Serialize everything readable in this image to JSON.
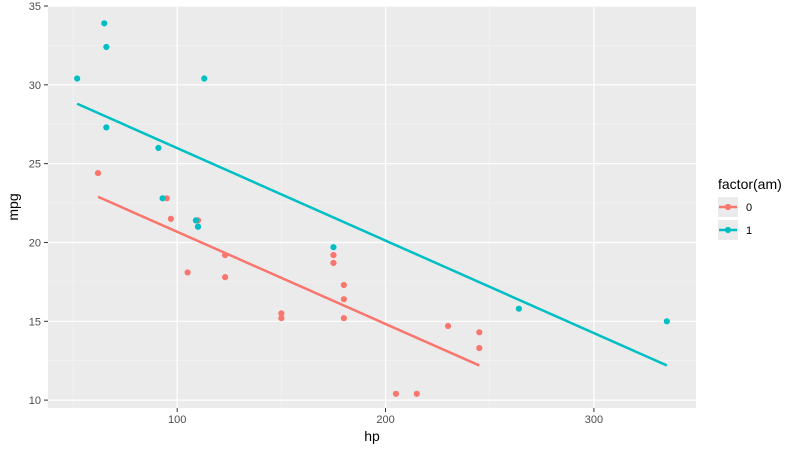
{
  "chart_data": {
    "type": "scatter",
    "xlabel": "hp",
    "ylabel": "mpg",
    "xlim": [
      38,
      349
    ],
    "ylim": [
      9.5,
      35
    ],
    "x_ticks": [
      100,
      200,
      300
    ],
    "y_ticks": [
      10,
      15,
      20,
      25,
      30,
      35
    ],
    "x_tick_labels": [
      "100",
      "200",
      "300"
    ],
    "y_tick_labels": [
      "10",
      "15",
      "20",
      "25",
      "30",
      "35"
    ],
    "grid": true,
    "legend": {
      "title": "factor(am)",
      "placement": "right"
    },
    "series": [
      {
        "name": "0",
        "color": "#F8766D",
        "points": [
          [
            110,
            21.4
          ],
          [
            175,
            18.7
          ],
          [
            105,
            18.1
          ],
          [
            245,
            14.3
          ],
          [
            62,
            24.4
          ],
          [
            95,
            22.8
          ],
          [
            123,
            19.2
          ],
          [
            123,
            17.8
          ],
          [
            180,
            16.4
          ],
          [
            180,
            17.3
          ],
          [
            180,
            15.2
          ],
          [
            205,
            10.4
          ],
          [
            215,
            10.4
          ],
          [
            230,
            14.7
          ],
          [
            97,
            21.5
          ],
          [
            150,
            15.5
          ],
          [
            150,
            15.2
          ],
          [
            245,
            13.3
          ],
          [
            175,
            19.2
          ]
        ],
        "fit_line": [
          [
            62,
            22.9
          ],
          [
            245,
            12.2
          ]
        ]
      },
      {
        "name": "1",
        "color": "#00BFC4",
        "points": [
          [
            110,
            21.0
          ],
          [
            110,
            21.0
          ],
          [
            93,
            22.8
          ],
          [
            66,
            32.4
          ],
          [
            52,
            30.4
          ],
          [
            65,
            33.9
          ],
          [
            66,
            27.3
          ],
          [
            91,
            26.0
          ],
          [
            113,
            30.4
          ],
          [
            264,
            15.8
          ],
          [
            175,
            19.7
          ],
          [
            335,
            15.0
          ],
          [
            109,
            21.4
          ]
        ],
        "fit_line": [
          [
            52,
            28.8
          ],
          [
            335,
            12.2
          ]
        ]
      }
    ]
  }
}
